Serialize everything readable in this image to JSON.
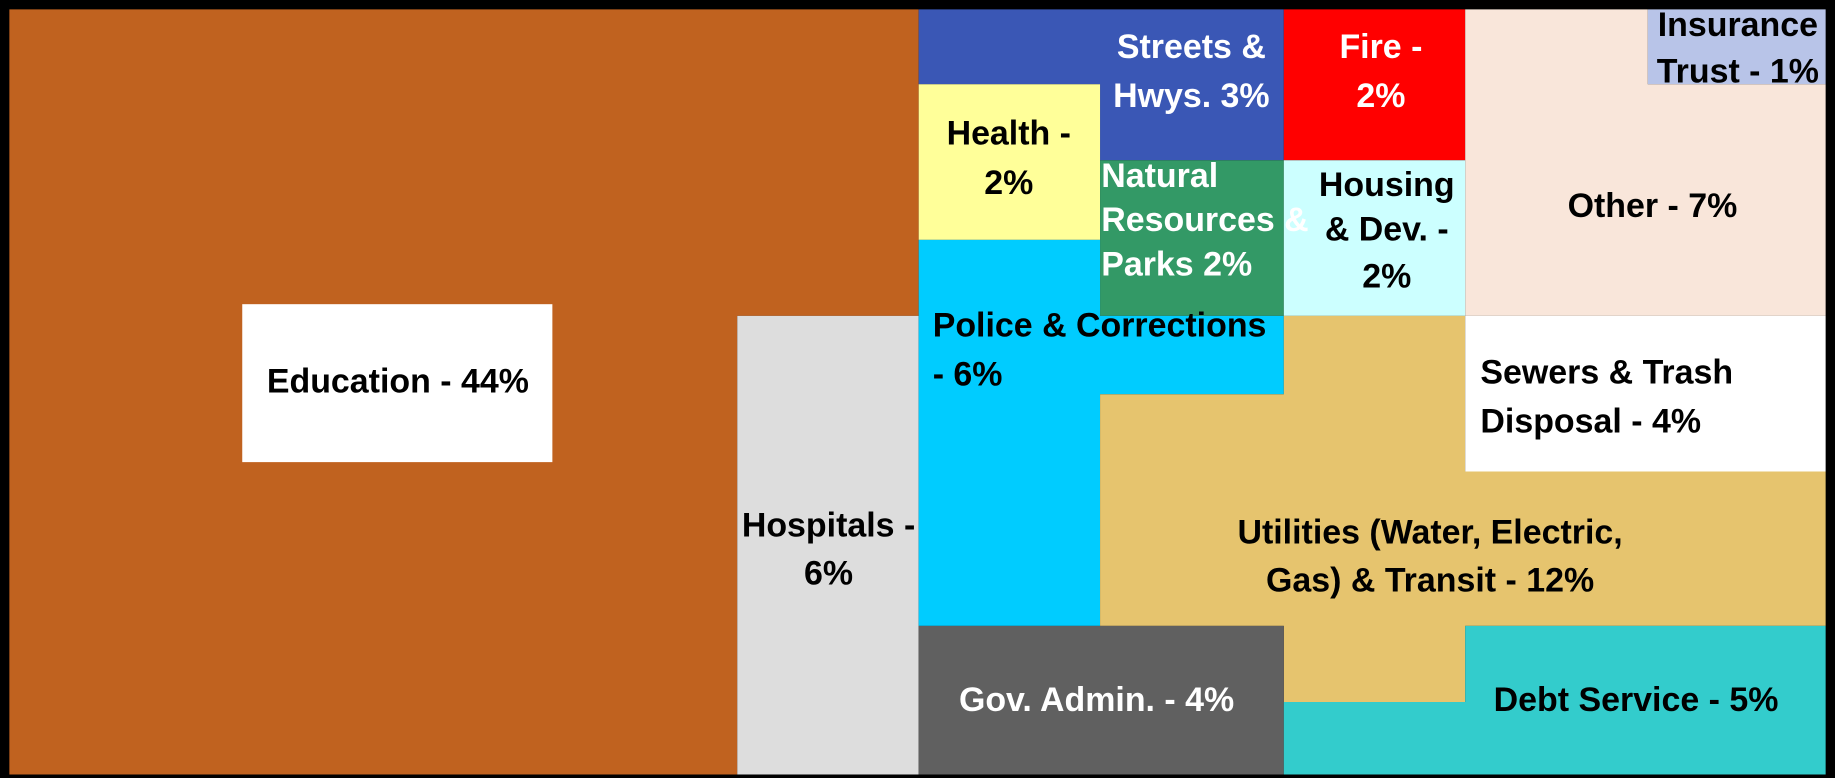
{
  "chart_data": {
    "type": "treemap",
    "labels": [
      [
        "Education - 44%"
      ],
      [
        "Hospitals -",
        "6%"
      ],
      [
        "Streets &",
        "Hwys. 3%"
      ],
      [
        "Health -",
        "2%"
      ],
      [
        "Fire -",
        "2%"
      ],
      [
        "Insurance",
        "Trust - 1%"
      ],
      [
        "Other - 7%"
      ],
      [
        "Natural",
        "Resources &",
        "Parks 2%"
      ],
      [
        "Housing",
        "& Dev. -",
        "2%"
      ],
      [
        "Police & Corrections",
        "- 6%"
      ],
      [
        "Utilities (Water, Electric,",
        "Gas) & Transit - 12%"
      ],
      [
        "Sewers & Trash",
        "Disposal - 4%"
      ],
      [
        "Gov. Admin. - 4%"
      ],
      [
        "Debt Service - 5%"
      ]
    ],
    "values": [
      44,
      6,
      3,
      2,
      2,
      1,
      7,
      2,
      2,
      6,
      12,
      4,
      4,
      5
    ],
    "colors": [
      "#C0621F",
      "#DDDDDD",
      "#3A57B5",
      "#FFFF99",
      "#FF0000",
      "#B8C4E8",
      "#F9E6DA",
      "#339966",
      "#CCFFFF",
      "#00CCFF",
      "#E6C46E",
      "#FFFFFF",
      "#606060",
      "#33CCCC"
    ]
  }
}
